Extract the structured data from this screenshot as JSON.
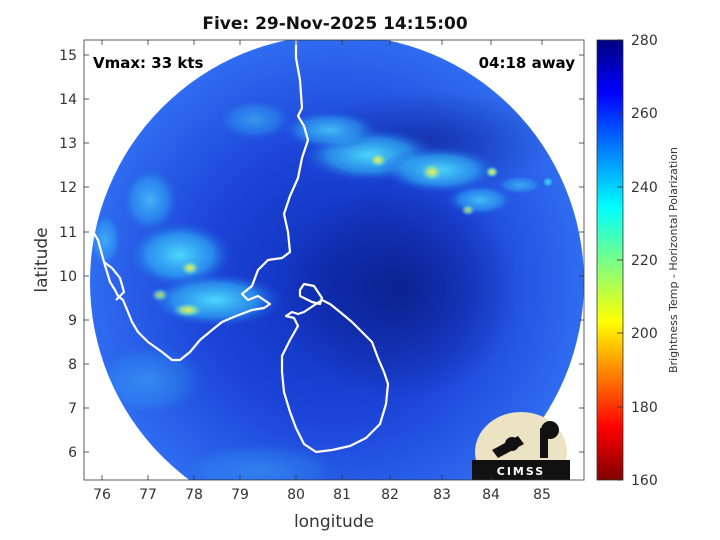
{
  "title": "Five: 29-Nov-2025 14:15:00",
  "vmax_label": "Vmax: 33 kts",
  "time_away": "04:18 away",
  "logo_text": "CIMSS",
  "x_axis": {
    "label": "longitude",
    "ticks": [
      "76",
      "77",
      "78",
      "79",
      "80",
      "81",
      "82",
      "83",
      "84",
      "85"
    ]
  },
  "y_axis": {
    "label": "latitude",
    "ticks": [
      "6",
      "7",
      "8",
      "9",
      "10",
      "11",
      "12",
      "13",
      "14",
      "15"
    ]
  },
  "colorbar": {
    "label": "Brightness Temp - Horizontal Polarization",
    "ticks": [
      "160",
      "180",
      "200",
      "220",
      "240",
      "260",
      "280"
    ],
    "colormap": "jet"
  },
  "map": {
    "lon_range": [
      75.6,
      85.9
    ],
    "lat_range": [
      5.35,
      15.35
    ],
    "storm_center": {
      "lon": 80.9,
      "lat": 9.9
    },
    "coastline_color": "#ffffff",
    "background_color": "#1a3fd6"
  }
}
